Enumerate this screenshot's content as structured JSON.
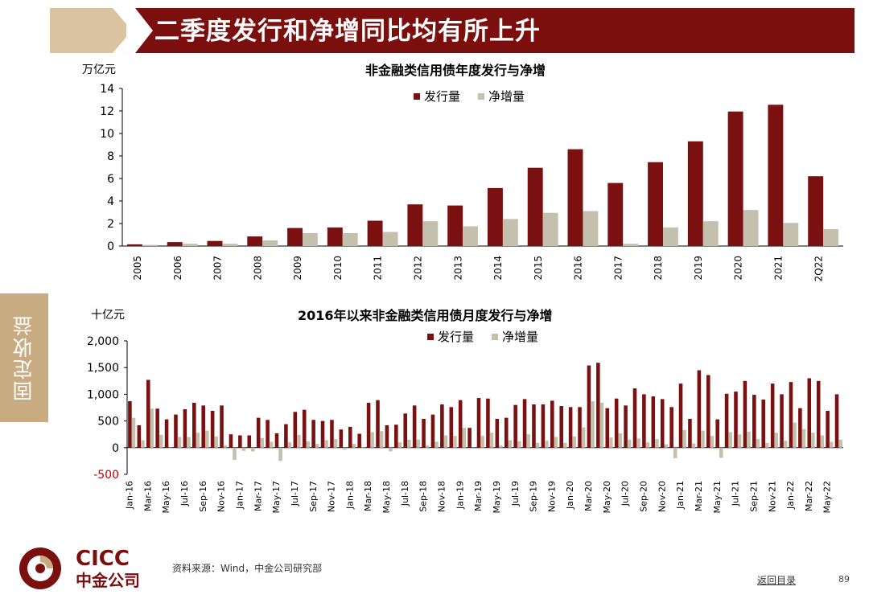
{
  "header": {
    "title": "二季度发行和净增同比均有所上升"
  },
  "sidebar": {
    "label": "固定收益"
  },
  "footer": {
    "source": "资料来源：Wind，中金公司研究部",
    "back_link": "返回目录",
    "page_number": "89",
    "logo_en": "CICC",
    "logo_cn": "中金公司"
  },
  "colors": {
    "issuance": "#7b1010",
    "net": "#c5c0ad",
    "header_bar": "#7a0f0d",
    "side_tab": "#c9ab82"
  },
  "chart_data": [
    {
      "type": "bar",
      "title": "非金融类信用债年度发行与净增",
      "unit_label": "万亿元",
      "categories": [
        "2005",
        "2006",
        "2007",
        "2008",
        "2009",
        "2010",
        "2011",
        "2012",
        "2013",
        "2014",
        "2015",
        "2016",
        "2017",
        "2018",
        "2019",
        "2020",
        "2021",
        "2Q22"
      ],
      "series": [
        {
          "name": "发行量",
          "values": [
            0.15,
            0.35,
            0.45,
            0.85,
            1.6,
            1.65,
            2.25,
            3.7,
            3.6,
            5.15,
            6.95,
            8.6,
            5.6,
            7.45,
            9.3,
            11.95,
            12.55,
            6.2
          ]
        },
        {
          "name": "净增量",
          "values": [
            0.1,
            0.2,
            0.2,
            0.5,
            1.15,
            1.15,
            1.25,
            2.2,
            1.75,
            2.4,
            2.95,
            3.1,
            0.2,
            1.65,
            2.2,
            3.2,
            2.05,
            1.5
          ]
        }
      ],
      "ylim": [
        0,
        14
      ],
      "yticks": [
        "0",
        "2",
        "4",
        "6",
        "8",
        "10",
        "12",
        "14"
      ],
      "legend": "top-center",
      "grid": false
    },
    {
      "type": "bar",
      "title": "2016年以来非金融类信用债月度发行与净增",
      "unit_label": "十亿元",
      "categories": [
        "Jan-16",
        "Feb-16",
        "Mar-16",
        "Apr-16",
        "May-16",
        "Jun-16",
        "Jul-16",
        "Aug-16",
        "Sep-16",
        "Oct-16",
        "Nov-16",
        "Dec-16",
        "Jan-17",
        "Feb-17",
        "Mar-17",
        "Apr-17",
        "May-17",
        "Jun-17",
        "Jul-17",
        "Aug-17",
        "Sep-17",
        "Oct-17",
        "Nov-17",
        "Dec-17",
        "Jan-18",
        "Feb-18",
        "Mar-18",
        "Apr-18",
        "May-18",
        "Jun-18",
        "Jul-18",
        "Aug-18",
        "Sep-18",
        "Oct-18",
        "Nov-18",
        "Dec-18",
        "Jan-19",
        "Feb-19",
        "Mar-19",
        "Apr-19",
        "May-19",
        "Jun-19",
        "Jul-19",
        "Aug-19",
        "Sep-19",
        "Oct-19",
        "Nov-19",
        "Dec-19",
        "Jan-20",
        "Feb-20",
        "Mar-20",
        "Apr-20",
        "May-20",
        "Jun-20",
        "Jul-20",
        "Aug-20",
        "Sep-20",
        "Oct-20",
        "Nov-20",
        "Dec-20",
        "Jan-21",
        "Feb-21",
        "Mar-21",
        "Apr-21",
        "May-21",
        "Jun-21",
        "Jul-21",
        "Aug-21",
        "Sep-21",
        "Oct-21",
        "Nov-21",
        "Dec-21",
        "Jan-22",
        "Feb-22",
        "Mar-22",
        "Apr-22",
        "May-22",
        "Jun-22"
      ],
      "tick_labels": [
        "Jan-16",
        "Mar-16",
        "May-16",
        "Jul-16",
        "Sep-16",
        "Nov-16",
        "Jan-17",
        "Mar-17",
        "May-17",
        "Jul-17",
        "Sep-17",
        "Nov-17",
        "Jan-18",
        "Mar-18",
        "May-18",
        "Jul-18",
        "Sep-18",
        "Nov-18",
        "Jan-19",
        "Mar-19",
        "May-19",
        "Jul-19",
        "Sep-19",
        "Nov-19",
        "Jan-20",
        "Mar-20",
        "May-20",
        "Jul-20",
        "Sep-20",
        "Nov-20",
        "Jan-21",
        "Mar-21",
        "May-21",
        "Jul-21",
        "Sep-21",
        "Nov-21",
        "Jan-22",
        "Mar-22",
        "May-22"
      ],
      "series": [
        {
          "name": "发行量",
          "values": [
            870,
            420,
            1270,
            730,
            530,
            620,
            720,
            840,
            790,
            690,
            790,
            250,
            230,
            230,
            560,
            520,
            270,
            440,
            670,
            710,
            520,
            500,
            520,
            340,
            390,
            260,
            840,
            890,
            420,
            430,
            640,
            790,
            540,
            620,
            810,
            760,
            890,
            370,
            930,
            920,
            540,
            560,
            800,
            910,
            810,
            810,
            880,
            780,
            760,
            760,
            1540,
            1590,
            740,
            920,
            790,
            1110,
            1000,
            960,
            910,
            760,
            1200,
            540,
            1450,
            1360,
            530,
            1010,
            1050,
            1250,
            990,
            900,
            1200,
            1000,
            1230,
            740,
            1300,
            1250,
            690,
            1000
          ]
        },
        {
          "name": "净增量",
          "values": [
            560,
            140,
            730,
            240,
            0,
            200,
            200,
            280,
            320,
            210,
            40,
            -230,
            -60,
            -70,
            180,
            110,
            -250,
            100,
            240,
            120,
            70,
            140,
            160,
            -40,
            70,
            10,
            290,
            310,
            -70,
            100,
            150,
            150,
            40,
            110,
            230,
            220,
            370,
            -20,
            220,
            280,
            40,
            140,
            120,
            250,
            90,
            130,
            200,
            90,
            210,
            380,
            870,
            840,
            190,
            270,
            150,
            170,
            100,
            160,
            60,
            -200,
            330,
            80,
            320,
            220,
            -190,
            290,
            250,
            300,
            160,
            90,
            280,
            130,
            470,
            350,
            280,
            230,
            110,
            150
          ]
        }
      ],
      "ylim": [
        -500,
        2000
      ],
      "yticks": [
        "-500",
        "0",
        "500",
        "1,000",
        "1,500",
        "2,000"
      ],
      "legend": "top-center",
      "grid": false
    }
  ]
}
